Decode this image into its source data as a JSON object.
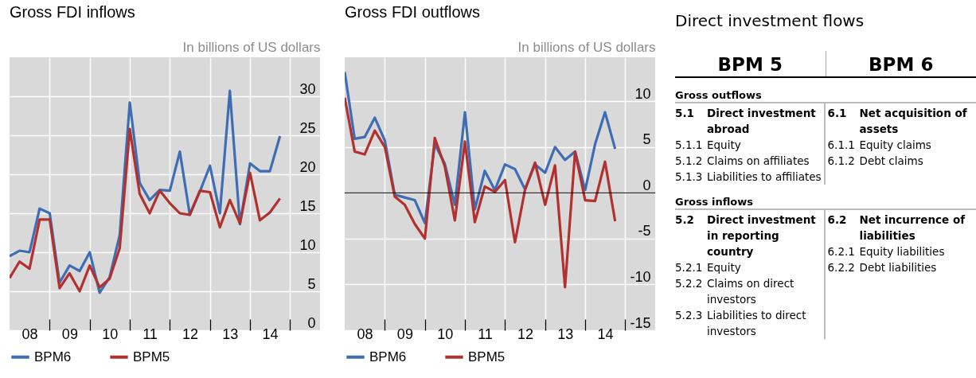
{
  "chart_data": [
    {
      "type": "line",
      "title": "Gross FDI inflows",
      "ylabel": "In billions of US dollars",
      "x": [
        "2008-01",
        "2008-04",
        "2008-07",
        "2008-10",
        "2009-01",
        "2009-04",
        "2009-07",
        "2009-10",
        "2010-01",
        "2010-04",
        "2010-07",
        "2010-10",
        "2011-01",
        "2011-04",
        "2011-07",
        "2011-10",
        "2012-01",
        "2012-04",
        "2012-07",
        "2012-10",
        "2013-01",
        "2013-04",
        "2013-07",
        "2013-10",
        "2014-01",
        "2014-04",
        "2014-07",
        "2014-10"
      ],
      "xlim": [
        "2008-01",
        "2015-10"
      ],
      "xticks": [
        {
          "value": "2008-07",
          "label": "08"
        },
        {
          "value": "2009-01",
          "label": null
        },
        {
          "value": "2009-07",
          "label": "09"
        },
        {
          "value": "2010-01",
          "label": null
        },
        {
          "value": "2010-07",
          "label": "10"
        },
        {
          "value": "2011-01",
          "label": null
        },
        {
          "value": "2011-07",
          "label": "11"
        },
        {
          "value": "2012-01",
          "label": null
        },
        {
          "value": "2012-07",
          "label": "12"
        },
        {
          "value": "2013-01",
          "label": null
        },
        {
          "value": "2013-07",
          "label": "13"
        },
        {
          "value": "2014-01",
          "label": null
        },
        {
          "value": "2014-07",
          "label": "14"
        },
        {
          "value": "2015-01",
          "label": null
        }
      ],
      "ylim": [
        0,
        35
      ],
      "yticks": [
        0,
        5,
        10,
        15,
        20,
        25,
        30
      ],
      "grid": true,
      "legend": "bottom",
      "series": [
        {
          "name": "BPM6",
          "color": "#3f6db3",
          "values": [
            9.5,
            10.2,
            10.0,
            15.6,
            15.0,
            6.1,
            8.3,
            7.6,
            10.0,
            4.8,
            6.8,
            12.2,
            29.2,
            18.9,
            16.7,
            18.0,
            17.9,
            22.9,
            14.8,
            17.8,
            21.1,
            15.0,
            30.7,
            13.6,
            21.4,
            20.4,
            20.4,
            24.9
          ]
        },
        {
          "name": "BPM5",
          "color": "#b2312e",
          "values": [
            6.7,
            8.8,
            7.9,
            14.2,
            14.2,
            5.4,
            7.3,
            5.0,
            8.3,
            5.5,
            6.6,
            10.5,
            25.8,
            17.5,
            15.0,
            17.9,
            16.3,
            15.0,
            14.8,
            17.9,
            17.7,
            13.2,
            16.7,
            13.7,
            20.2,
            14.1,
            15.1,
            16.9
          ]
        }
      ]
    },
    {
      "type": "line",
      "title": "Gross FDI outflows",
      "ylabel": "In billions of US dollars",
      "x": [
        "2008-01",
        "2008-04",
        "2008-07",
        "2008-10",
        "2009-01",
        "2009-04",
        "2009-07",
        "2009-10",
        "2010-01",
        "2010-04",
        "2010-07",
        "2010-10",
        "2011-01",
        "2011-04",
        "2011-07",
        "2011-10",
        "2012-01",
        "2012-04",
        "2012-07",
        "2012-10",
        "2013-01",
        "2013-04",
        "2013-07",
        "2013-10",
        "2014-01",
        "2014-04",
        "2014-07",
        "2014-10"
      ],
      "xlim": [
        "2008-01",
        "2015-10"
      ],
      "xticks": [
        {
          "value": "2008-07",
          "label": "08"
        },
        {
          "value": "2009-01",
          "label": null
        },
        {
          "value": "2009-07",
          "label": "09"
        },
        {
          "value": "2010-01",
          "label": null
        },
        {
          "value": "2010-07",
          "label": "10"
        },
        {
          "value": "2011-01",
          "label": null
        },
        {
          "value": "2011-07",
          "label": "11"
        },
        {
          "value": "2012-01",
          "label": null
        },
        {
          "value": "2012-07",
          "label": "12"
        },
        {
          "value": "2013-01",
          "label": null
        },
        {
          "value": "2013-07",
          "label": "13"
        },
        {
          "value": "2014-01",
          "label": null
        },
        {
          "value": "2014-07",
          "label": "14"
        },
        {
          "value": "2015-01",
          "label": null
        }
      ],
      "ylim": [
        -15,
        14.8
      ],
      "yticks": [
        -15,
        -10,
        -5,
        0,
        5,
        10
      ],
      "grid": true,
      "legend": "bottom",
      "ref_lines": [
        {
          "axis": "y",
          "value": 0,
          "color": "#000000"
        }
      ],
      "series": [
        {
          "name": "BPM6",
          "color": "#3f6db3",
          "values": [
            13.2,
            5.9,
            6.1,
            8.2,
            5.7,
            -0.2,
            -0.5,
            -0.8,
            -3.3,
            5.3,
            3.2,
            -1.3,
            8.8,
            -1.8,
            2.4,
            0.3,
            3.1,
            2.6,
            0.4,
            3.1,
            2.2,
            5.0,
            3.6,
            4.5,
            0.3,
            5.3,
            8.8,
            4.8
          ]
        },
        {
          "name": "BPM5",
          "color": "#b2312e",
          "values": [
            10.4,
            4.5,
            4.2,
            6.8,
            5.0,
            -0.4,
            -1.3,
            -3.4,
            -5.0,
            6.0,
            2.9,
            -3.0,
            5.6,
            -3.2,
            0.7,
            0.1,
            1.4,
            -5.4,
            0.3,
            3.3,
            -1.3,
            3.0,
            -10.3,
            4.5,
            -0.8,
            -0.9,
            3.4,
            -3.1
          ]
        }
      ]
    },
    {
      "type": "other",
      "title": "Direct investment flows",
      "annotations": [
        "BPM 5",
        "BPM 6",
        "Gross outflows",
        "5.1 Direct investment abroad",
        "5.1.1 Equity",
        "5.1.2 Claims on affiliates",
        "5.1.3 Liabilities to affiliates",
        "6.1 Net acquisition of assets",
        "6.1.1 Equity claims",
        "6.1.2 Debt claims",
        "Gross inflows",
        "5.2 Direct investment in reporting country",
        "5.2.1 Equity",
        "5.2.2 Claims on direct investors",
        "5.2.3 Liabilities to direct investors",
        "6.2 Net incurrence of liabilities",
        "6.2.1 Equity liabilities",
        "6.2.2 Debt liabilities"
      ]
    }
  ]
}
